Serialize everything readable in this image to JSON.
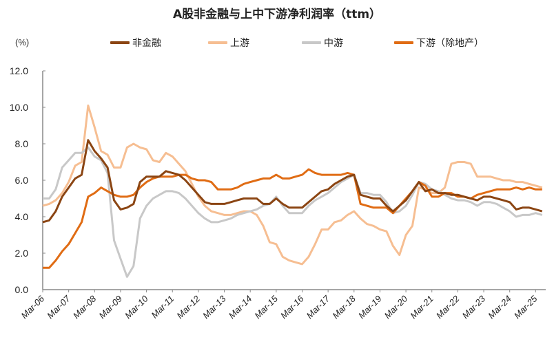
{
  "chart_data": {
    "type": "line",
    "title": "A股非金融与上中下游净利润率（ttm）",
    "ylabel": "(%)",
    "xlabel": "",
    "ylim": [
      0,
      12
    ],
    "yticks": [
      "0.0",
      "2.0",
      "4.0",
      "6.0",
      "8.0",
      "10.0",
      "12.0"
    ],
    "xticks": [
      "Mar-06",
      "Mar-07",
      "Mar-08",
      "Mar-09",
      "Mar-10",
      "Mar-11",
      "Mar-12",
      "Mar-13",
      "Mar-14",
      "Mar-15",
      "Mar-16",
      "Mar-17",
      "Mar-18",
      "Mar-19",
      "Mar-20",
      "Mar-21",
      "Mar-22",
      "Mar-23",
      "Mar-24",
      "Mar-25"
    ],
    "grid": false,
    "legend_position": "top",
    "frequency": "quarterly",
    "x_start": "Mar-06",
    "series": [
      {
        "name": "非金融",
        "color": "#8B4513",
        "values": [
          3.7,
          3.8,
          4.3,
          5.1,
          5.6,
          6.1,
          6.3,
          8.2,
          7.6,
          7.2,
          6.7,
          4.9,
          4.4,
          4.5,
          4.7,
          5.9,
          6.2,
          6.2,
          6.2,
          6.5,
          6.4,
          6.3,
          6.0,
          5.6,
          5.2,
          4.8,
          4.7,
          4.7,
          4.7,
          4.8,
          4.9,
          5.0,
          5.0,
          5.0,
          4.7,
          4.7,
          5.0,
          4.7,
          4.5,
          4.5,
          4.5,
          4.8,
          5.1,
          5.4,
          5.5,
          5.8,
          6.0,
          6.2,
          6.3,
          5.2,
          5.1,
          5.0,
          5.0,
          4.6,
          4.3,
          4.6,
          4.9,
          5.4,
          5.9,
          5.4,
          5.5,
          5.3,
          5.3,
          5.2,
          5.2,
          5.1,
          5.0,
          4.9,
          5.1,
          5.1,
          5.0,
          4.9,
          4.8,
          4.4,
          4.5,
          4.5,
          4.4,
          4.3
        ]
      },
      {
        "name": "上游",
        "color": "#F6BE92",
        "values": [
          4.6,
          4.7,
          4.9,
          5.3,
          5.9,
          6.8,
          7.0,
          10.1,
          8.9,
          7.6,
          7.4,
          6.7,
          6.7,
          7.8,
          8.0,
          7.8,
          7.7,
          7.1,
          7.0,
          7.5,
          7.3,
          6.9,
          6.5,
          5.8,
          5.1,
          4.6,
          4.3,
          4.2,
          4.1,
          4.1,
          4.2,
          4.3,
          4.3,
          4.1,
          3.5,
          2.6,
          2.5,
          1.8,
          1.6,
          1.5,
          1.4,
          1.8,
          2.5,
          3.3,
          3.3,
          3.7,
          3.8,
          4.1,
          4.3,
          3.9,
          3.6,
          3.5,
          3.3,
          3.2,
          2.4,
          1.9,
          3.0,
          3.5,
          5.6,
          5.5,
          5.3,
          5.3,
          5.6,
          6.9,
          7.0,
          7.0,
          6.9,
          6.2,
          6.2,
          6.2,
          6.1,
          6.0,
          6.0,
          5.9,
          5.9,
          5.8,
          5.7,
          5.6
        ]
      },
      {
        "name": "中游",
        "color": "#C8C8C8",
        "values": [
          5.0,
          5.0,
          5.5,
          6.7,
          7.1,
          7.5,
          7.5,
          7.8,
          7.3,
          7.1,
          6.4,
          2.7,
          1.7,
          0.7,
          1.3,
          3.9,
          4.6,
          5.0,
          5.2,
          5.4,
          5.4,
          5.3,
          5.0,
          4.6,
          4.2,
          3.9,
          3.7,
          3.7,
          3.8,
          3.9,
          4.1,
          4.2,
          4.3,
          4.4,
          4.6,
          4.7,
          5.1,
          4.6,
          4.2,
          4.2,
          4.2,
          4.6,
          4.9,
          5.1,
          5.3,
          5.6,
          5.9,
          6.1,
          6.3,
          5.3,
          5.3,
          5.2,
          5.2,
          4.8,
          4.2,
          4.3,
          4.6,
          5.2,
          5.9,
          5.8,
          5.5,
          5.4,
          5.2,
          5.0,
          4.9,
          4.9,
          4.8,
          4.6,
          4.8,
          4.8,
          4.7,
          4.5,
          4.3,
          4.0,
          4.1,
          4.1,
          4.2,
          4.1
        ]
      },
      {
        "name": "下游（除地产）",
        "color": "#E06C14",
        "values": [
          1.2,
          1.2,
          1.6,
          2.1,
          2.5,
          3.1,
          3.7,
          5.1,
          5.3,
          5.6,
          5.4,
          5.2,
          5.1,
          5.1,
          5.2,
          5.6,
          5.9,
          6.1,
          6.2,
          6.2,
          6.2,
          6.3,
          6.3,
          6.1,
          6.0,
          6.0,
          5.9,
          5.5,
          5.5,
          5.5,
          5.6,
          5.8,
          5.9,
          6.0,
          6.1,
          6.1,
          6.3,
          6.1,
          6.1,
          6.2,
          6.3,
          6.6,
          6.4,
          6.3,
          6.3,
          6.3,
          6.3,
          6.4,
          6.3,
          4.7,
          4.6,
          4.5,
          4.5,
          4.5,
          4.2,
          4.6,
          5.0,
          5.4,
          5.9,
          5.7,
          5.1,
          5.1,
          5.3,
          5.3,
          5.1,
          5.1,
          5.0,
          5.2,
          5.3,
          5.4,
          5.5,
          5.5,
          5.5,
          5.6,
          5.5,
          5.6,
          5.5,
          5.5
        ]
      }
    ]
  },
  "header": {
    "title": "A股非金融与上中下游净利润率（ttm）",
    "unit_label": "(%)"
  },
  "legend": {
    "items": [
      {
        "label": "非金融",
        "color": "#8B4513"
      },
      {
        "label": "上游",
        "color": "#F6BE92"
      },
      {
        "label": "中游",
        "color": "#C8C8C8"
      },
      {
        "label": "下游（除地产）",
        "color": "#E06C14"
      }
    ]
  }
}
